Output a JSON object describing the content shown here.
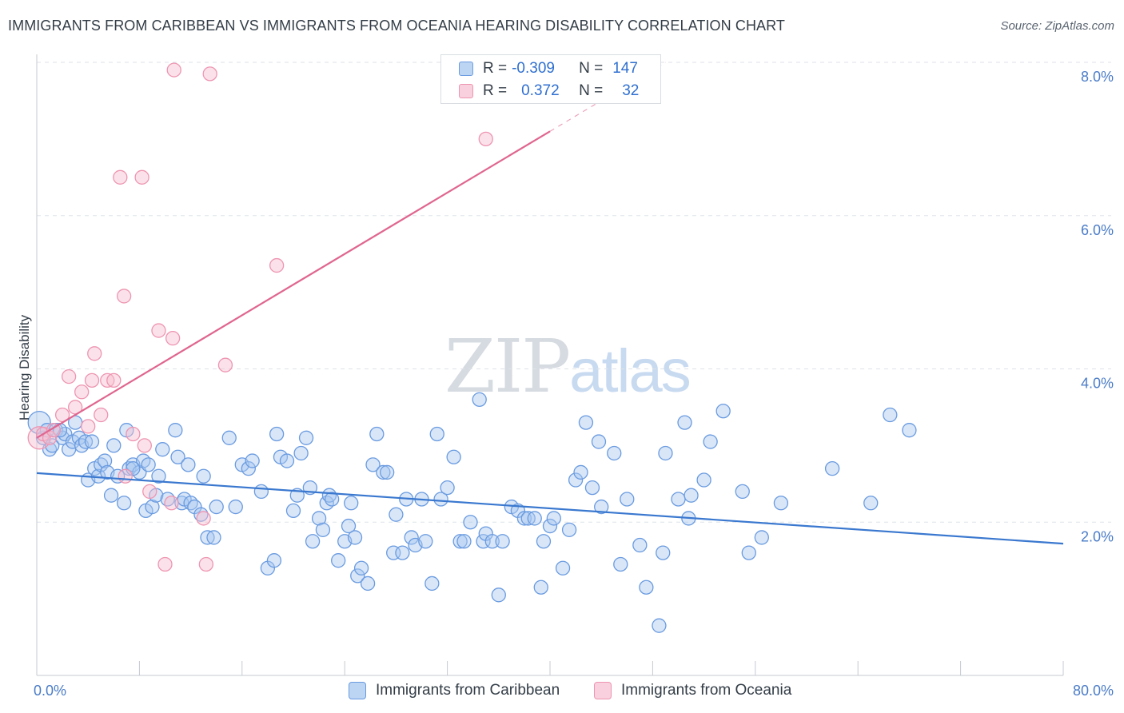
{
  "title": "IMMIGRANTS FROM CARIBBEAN VS IMMIGRANTS FROM OCEANIA HEARING DISABILITY CORRELATION CHART",
  "source": "Source: ZipAtlas.com",
  "watermark": {
    "zip": "ZIP",
    "atlas": "atlas"
  },
  "legend": {
    "r_label": "R =",
    "n_label": "N =",
    "rows": [
      {
        "r": "-0.309",
        "n": "147"
      },
      {
        "r": "0.372",
        "n": "32"
      }
    ]
  },
  "colors": {
    "caribbean_fill": "#a9c8f0",
    "caribbean_stroke": "#6a9be0",
    "caribbean_line": "#3a78cf",
    "oceania_fill": "#f6bfd0",
    "oceania_stroke": "#ee95b1",
    "oceania_line": "#e0668f",
    "grid": "#dde2e8",
    "tick_text": "#4a7cc7"
  },
  "chart_data": {
    "type": "scatter",
    "xlabel": "",
    "ylabel": "Hearing Disability",
    "xlim": [
      0,
      80
    ],
    "ylim": [
      0,
      8
    ],
    "x_tick_labels": [
      {
        "value": 0,
        "label": "0.0%"
      },
      {
        "value": 80,
        "label": "80.0%"
      }
    ],
    "y_tick_labels": [
      {
        "value": 2,
        "label": "2.0%"
      },
      {
        "value": 4,
        "label": "4.0%"
      },
      {
        "value": 6,
        "label": "6.0%"
      },
      {
        "value": 8,
        "label": "8.0%"
      }
    ],
    "grid": true,
    "legend_position": "top-center",
    "series": [
      {
        "name": "Immigrants from Caribbean",
        "trend": {
          "x": [
            0,
            80
          ],
          "y": [
            2.64,
            1.72
          ]
        },
        "points": [
          [
            0.2,
            3.3
          ],
          [
            0.5,
            3.1
          ],
          [
            0.8,
            3.2
          ],
          [
            1.0,
            2.95
          ],
          [
            1.2,
            3.0
          ],
          [
            1.5,
            3.2
          ],
          [
            2.0,
            3.1
          ],
          [
            2.2,
            3.15
          ],
          [
            2.5,
            2.95
          ],
          [
            2.8,
            3.05
          ],
          [
            3.0,
            3.3
          ],
          [
            3.3,
            3.1
          ],
          [
            3.5,
            3.0
          ],
          [
            3.8,
            3.05
          ],
          [
            4.0,
            2.55
          ],
          [
            4.3,
            3.05
          ],
          [
            4.5,
            2.7
          ],
          [
            4.8,
            2.6
          ],
          [
            5.0,
            2.75
          ],
          [
            5.3,
            2.8
          ],
          [
            5.5,
            2.65
          ],
          [
            5.8,
            2.35
          ],
          [
            6.0,
            3.0
          ],
          [
            6.3,
            2.6
          ],
          [
            6.8,
            2.25
          ],
          [
            7.0,
            3.2
          ],
          [
            7.2,
            2.7
          ],
          [
            7.5,
            2.75
          ],
          [
            8.0,
            2.65
          ],
          [
            8.3,
            2.8
          ],
          [
            8.5,
            2.15
          ],
          [
            8.7,
            2.75
          ],
          [
            9.0,
            2.2
          ],
          [
            9.3,
            2.35
          ],
          [
            9.5,
            2.6
          ],
          [
            9.8,
            2.95
          ],
          [
            10.2,
            2.3
          ],
          [
            10.8,
            3.2
          ],
          [
            11.0,
            2.85
          ],
          [
            11.3,
            2.25
          ],
          [
            11.5,
            2.3
          ],
          [
            11.8,
            2.75
          ],
          [
            12.0,
            2.25
          ],
          [
            12.3,
            2.2
          ],
          [
            12.8,
            2.1
          ],
          [
            13.0,
            2.6
          ],
          [
            13.3,
            1.8
          ],
          [
            13.8,
            1.8
          ],
          [
            14.0,
            2.2
          ],
          [
            15.0,
            3.1
          ],
          [
            15.5,
            2.2
          ],
          [
            16.0,
            2.75
          ],
          [
            16.5,
            2.7
          ],
          [
            16.8,
            2.8
          ],
          [
            17.5,
            2.4
          ],
          [
            18.0,
            1.4
          ],
          [
            18.5,
            1.5
          ],
          [
            18.7,
            3.15
          ],
          [
            19.0,
            2.85
          ],
          [
            19.5,
            2.8
          ],
          [
            20.0,
            2.15
          ],
          [
            20.3,
            2.35
          ],
          [
            20.6,
            2.9
          ],
          [
            21.0,
            3.1
          ],
          [
            21.3,
            2.45
          ],
          [
            21.5,
            1.75
          ],
          [
            22.0,
            2.05
          ],
          [
            22.3,
            1.9
          ],
          [
            22.6,
            2.25
          ],
          [
            22.8,
            2.35
          ],
          [
            23.0,
            2.3
          ],
          [
            23.5,
            1.5
          ],
          [
            24.0,
            1.75
          ],
          [
            24.3,
            1.95
          ],
          [
            24.5,
            2.25
          ],
          [
            24.8,
            1.8
          ],
          [
            25.0,
            1.3
          ],
          [
            25.3,
            1.4
          ],
          [
            25.8,
            1.2
          ],
          [
            26.2,
            2.75
          ],
          [
            26.5,
            3.15
          ],
          [
            27.0,
            2.65
          ],
          [
            27.3,
            2.65
          ],
          [
            27.8,
            1.6
          ],
          [
            28.0,
            2.1
          ],
          [
            28.5,
            1.6
          ],
          [
            28.8,
            2.3
          ],
          [
            29.2,
            1.8
          ],
          [
            29.5,
            1.7
          ],
          [
            30.0,
            2.3
          ],
          [
            30.3,
            1.75
          ],
          [
            30.8,
            1.2
          ],
          [
            31.2,
            3.15
          ],
          [
            31.5,
            2.3
          ],
          [
            32.0,
            2.45
          ],
          [
            32.5,
            2.85
          ],
          [
            33.0,
            1.75
          ],
          [
            33.3,
            1.75
          ],
          [
            33.8,
            2.0
          ],
          [
            34.5,
            3.6
          ],
          [
            34.8,
            1.75
          ],
          [
            35.0,
            1.85
          ],
          [
            35.5,
            1.75
          ],
          [
            36.0,
            1.05
          ],
          [
            36.3,
            1.75
          ],
          [
            37.0,
            2.2
          ],
          [
            37.5,
            2.15
          ],
          [
            38.0,
            2.05
          ],
          [
            38.3,
            2.05
          ],
          [
            38.8,
            2.05
          ],
          [
            39.3,
            1.15
          ],
          [
            39.5,
            1.75
          ],
          [
            40.0,
            1.95
          ],
          [
            40.3,
            2.05
          ],
          [
            41.0,
            1.4
          ],
          [
            41.5,
            1.9
          ],
          [
            42.0,
            2.55
          ],
          [
            42.4,
            2.65
          ],
          [
            42.8,
            3.3
          ],
          [
            43.3,
            2.45
          ],
          [
            43.8,
            3.05
          ],
          [
            44.0,
            2.2
          ],
          [
            45.0,
            2.9
          ],
          [
            45.5,
            1.45
          ],
          [
            46.0,
            2.3
          ],
          [
            47.0,
            1.7
          ],
          [
            47.5,
            1.15
          ],
          [
            48.5,
            0.65
          ],
          [
            48.8,
            1.6
          ],
          [
            49.0,
            2.9
          ],
          [
            50.0,
            2.3
          ],
          [
            50.5,
            3.3
          ],
          [
            50.8,
            2.05
          ],
          [
            51.0,
            2.35
          ],
          [
            52.0,
            2.55
          ],
          [
            52.5,
            3.05
          ],
          [
            53.5,
            3.45
          ],
          [
            55.0,
            2.4
          ],
          [
            55.5,
            1.6
          ],
          [
            56.5,
            1.8
          ],
          [
            58.0,
            2.25
          ],
          [
            62.0,
            2.7
          ],
          [
            65.0,
            2.25
          ],
          [
            66.5,
            3.4
          ],
          [
            68.0,
            3.2
          ],
          [
            1.8,
            3.2
          ],
          [
            7.5,
            2.7
          ]
        ]
      },
      {
        "name": "Immigrants from Oceania",
        "trend": {
          "x": [
            0,
            40
          ],
          "y": [
            3.1,
            7.1
          ]
        },
        "trend_dashed": {
          "x": [
            40,
            49
          ],
          "y": [
            7.1,
            8.0
          ]
        },
        "points": [
          [
            0.2,
            3.1
          ],
          [
            0.5,
            3.15
          ],
          [
            1.0,
            3.1
          ],
          [
            1.3,
            3.2
          ],
          [
            2.0,
            3.4
          ],
          [
            2.5,
            3.9
          ],
          [
            3.0,
            3.5
          ],
          [
            3.5,
            3.7
          ],
          [
            4.0,
            3.25
          ],
          [
            4.3,
            3.85
          ],
          [
            4.5,
            4.2
          ],
          [
            5.0,
            3.4
          ],
          [
            5.5,
            3.85
          ],
          [
            6.0,
            3.85
          ],
          [
            6.5,
            6.5
          ],
          [
            6.8,
            4.95
          ],
          [
            6.9,
            2.6
          ],
          [
            7.5,
            3.15
          ],
          [
            8.2,
            6.5
          ],
          [
            8.4,
            3.0
          ],
          [
            8.8,
            2.4
          ],
          [
            9.5,
            4.5
          ],
          [
            10.0,
            1.45
          ],
          [
            10.5,
            2.25
          ],
          [
            10.6,
            4.4
          ],
          [
            10.7,
            7.9
          ],
          [
            13.0,
            2.05
          ],
          [
            13.2,
            1.45
          ],
          [
            13.5,
            7.85
          ],
          [
            14.7,
            4.05
          ],
          [
            18.7,
            5.35
          ],
          [
            35.0,
            7.0
          ]
        ]
      }
    ]
  },
  "bottom_legend": [
    {
      "label": "Immigrants from Caribbean"
    },
    {
      "label": "Immigrants from Oceania"
    }
  ]
}
